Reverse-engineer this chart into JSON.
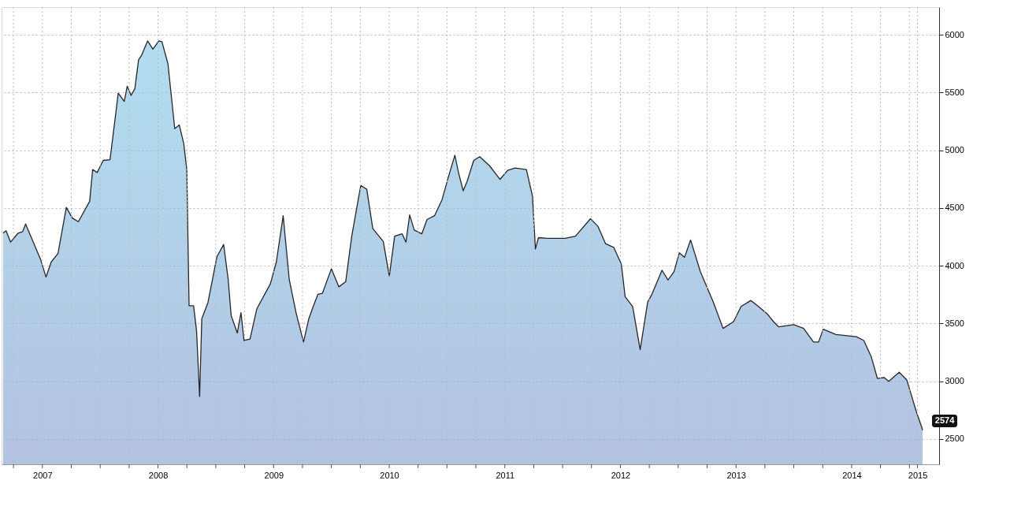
{
  "chart_data": {
    "type": "area",
    "x": [
      2007.16,
      2007.186,
      2007.225,
      2007.29,
      2007.329,
      2007.355,
      2007.485,
      2007.531,
      2007.577,
      2007.635,
      2007.707,
      2007.759,
      2007.811,
      2007.909,
      2007.935,
      2007.974,
      2008.026,
      2008.085,
      2008.137,
      2008.156,
      2008.208,
      2008.234,
      2008.267,
      2008.3,
      2008.332,
      2008.358,
      2008.41,
      2008.456,
      2008.508,
      2008.534,
      2008.586,
      2008.645,
      2008.684,
      2008.723,
      2008.749,
      2008.769,
      2008.808,
      2008.834,
      2008.86,
      2008.879,
      2008.932,
      2009.01,
      2009.068,
      2009.107,
      2009.133,
      2009.186,
      2009.218,
      2009.244,
      2009.296,
      2009.355,
      2009.472,
      2009.524,
      2009.583,
      2009.635,
      2009.694,
      2009.759,
      2009.805,
      2009.85,
      2009.883,
      2009.922,
      2010.0,
      2010.065,
      2010.124,
      2010.176,
      2010.254,
      2010.306,
      2010.358,
      2010.449,
      2010.501,
      2010.547,
      2010.612,
      2010.645,
      2010.677,
      2010.717,
      2010.782,
      2010.827,
      2010.892,
      2010.957,
      2011.01,
      2011.068,
      2011.101,
      2011.14,
      2011.173,
      2011.231,
      2011.283,
      2011.368,
      2011.459,
      2011.524,
      2011.59,
      2011.687,
      2011.739,
      2011.765,
      2011.791,
      2011.87,
      2012.02,
      2012.111,
      2012.241,
      2012.306,
      2012.371,
      2012.443,
      2012.508,
      2012.541,
      2012.606,
      2012.671,
      2012.736,
      2012.769,
      2012.86,
      2012.912,
      2012.964,
      2013.01,
      2013.055,
      2013.107,
      2013.192,
      2013.303,
      2013.388,
      2013.479,
      2013.544,
      2013.629,
      2013.694,
      2013.772,
      2013.824,
      2013.87,
      2014.0,
      2014.085,
      2014.17,
      2014.215,
      2014.254,
      2014.365,
      2014.541,
      2014.606,
      2014.671,
      2014.723,
      2014.782,
      2014.821,
      2014.912,
      2014.977,
      2015.062,
      2015.108,
      2015.114
    ],
    "series": [
      {
        "color": "#8fcfea",
        "values": [
          4282,
          4302,
          4204,
          4282,
          4295,
          4361,
          4053,
          3902,
          4033,
          4105,
          4505,
          4413,
          4381,
          4558,
          4833,
          4807,
          4912,
          4918,
          5337,
          5495,
          5423,
          5554,
          5475,
          5534,
          5783,
          5822,
          5947,
          5875,
          5947,
          5940,
          5750,
          5187,
          5220,
          5056,
          4833,
          3653,
          3653,
          3431,
          2867,
          3542,
          3680,
          4079,
          4184,
          3883,
          3568,
          3417,
          3594,
          3352,
          3365,
          3627,
          3843,
          4033,
          4433,
          3883,
          3594,
          3339,
          3542,
          3666,
          3752,
          3760,
          3974,
          3817,
          3863,
          4256,
          4695,
          4662,
          4322,
          4210,
          3909,
          4256,
          4276,
          4204,
          4440,
          4309,
          4276,
          4400,
          4433,
          4571,
          4761,
          4957,
          4800,
          4649,
          4728,
          4912,
          4944,
          4866,
          4748,
          4826,
          4846,
          4833,
          4603,
          4145,
          4243,
          4237,
          4237,
          4256,
          4407,
          4341,
          4191,
          4158,
          4014,
          3732,
          3647,
          3273,
          3686,
          3745,
          3961,
          3876,
          3948,
          4112,
          4073,
          4223,
          3948,
          3686,
          3457,
          3516,
          3647,
          3699,
          3647,
          3581,
          3516,
          3470,
          3490,
          3457,
          3339,
          3339,
          3450,
          3404,
          3385,
          3352,
          3208,
          3024,
          3031,
          2998,
          3077,
          3011,
          2729,
          2598,
          2574
        ]
      }
    ],
    "xlim": [
      2007.147,
      2015.257
    ],
    "xticks": [
      {
        "value": 2007.25,
        "label": null
      },
      {
        "value": 2007.5,
        "label": "2007"
      },
      {
        "value": 2007.75,
        "label": null
      },
      {
        "value": 2008,
        "label": null
      },
      {
        "value": 2008.25,
        "label": null
      },
      {
        "value": 2008.5,
        "label": "2008"
      },
      {
        "value": 2008.75,
        "label": null
      },
      {
        "value": 2009,
        "label": null
      },
      {
        "value": 2009.25,
        "label": null
      },
      {
        "value": 2009.5,
        "label": "2009"
      },
      {
        "value": 2009.75,
        "label": null
      },
      {
        "value": 2010,
        "label": null
      },
      {
        "value": 2010.25,
        "label": null
      },
      {
        "value": 2010.5,
        "label": "2010"
      },
      {
        "value": 2010.75,
        "label": null
      },
      {
        "value": 2011,
        "label": null
      },
      {
        "value": 2011.25,
        "label": null
      },
      {
        "value": 2011.5,
        "label": "2011"
      },
      {
        "value": 2011.75,
        "label": null
      },
      {
        "value": 2012,
        "label": null
      },
      {
        "value": 2012.25,
        "label": null
      },
      {
        "value": 2012.5,
        "label": "2012"
      },
      {
        "value": 2012.75,
        "label": null
      },
      {
        "value": 2013,
        "label": null
      },
      {
        "value": 2013.25,
        "label": null
      },
      {
        "value": 2013.5,
        "label": "2013"
      },
      {
        "value": 2013.75,
        "label": null
      },
      {
        "value": 2014,
        "label": null
      },
      {
        "value": 2014.25,
        "label": null
      },
      {
        "value": 2014.5,
        "label": "2014"
      },
      {
        "value": 2014.75,
        "label": null
      },
      {
        "value": 2015,
        "label": null
      },
      {
        "value": 2015.07,
        "label": "2015"
      }
    ],
    "ylim": [
      2280,
      6240
    ],
    "yticks": [
      2500,
      3000,
      3500,
      4000,
      4500,
      5000,
      5500,
      6000
    ],
    "grid": true,
    "annotations": [
      {
        "text": "2574",
        "x": 2015.114,
        "y": 2574
      }
    ]
  }
}
